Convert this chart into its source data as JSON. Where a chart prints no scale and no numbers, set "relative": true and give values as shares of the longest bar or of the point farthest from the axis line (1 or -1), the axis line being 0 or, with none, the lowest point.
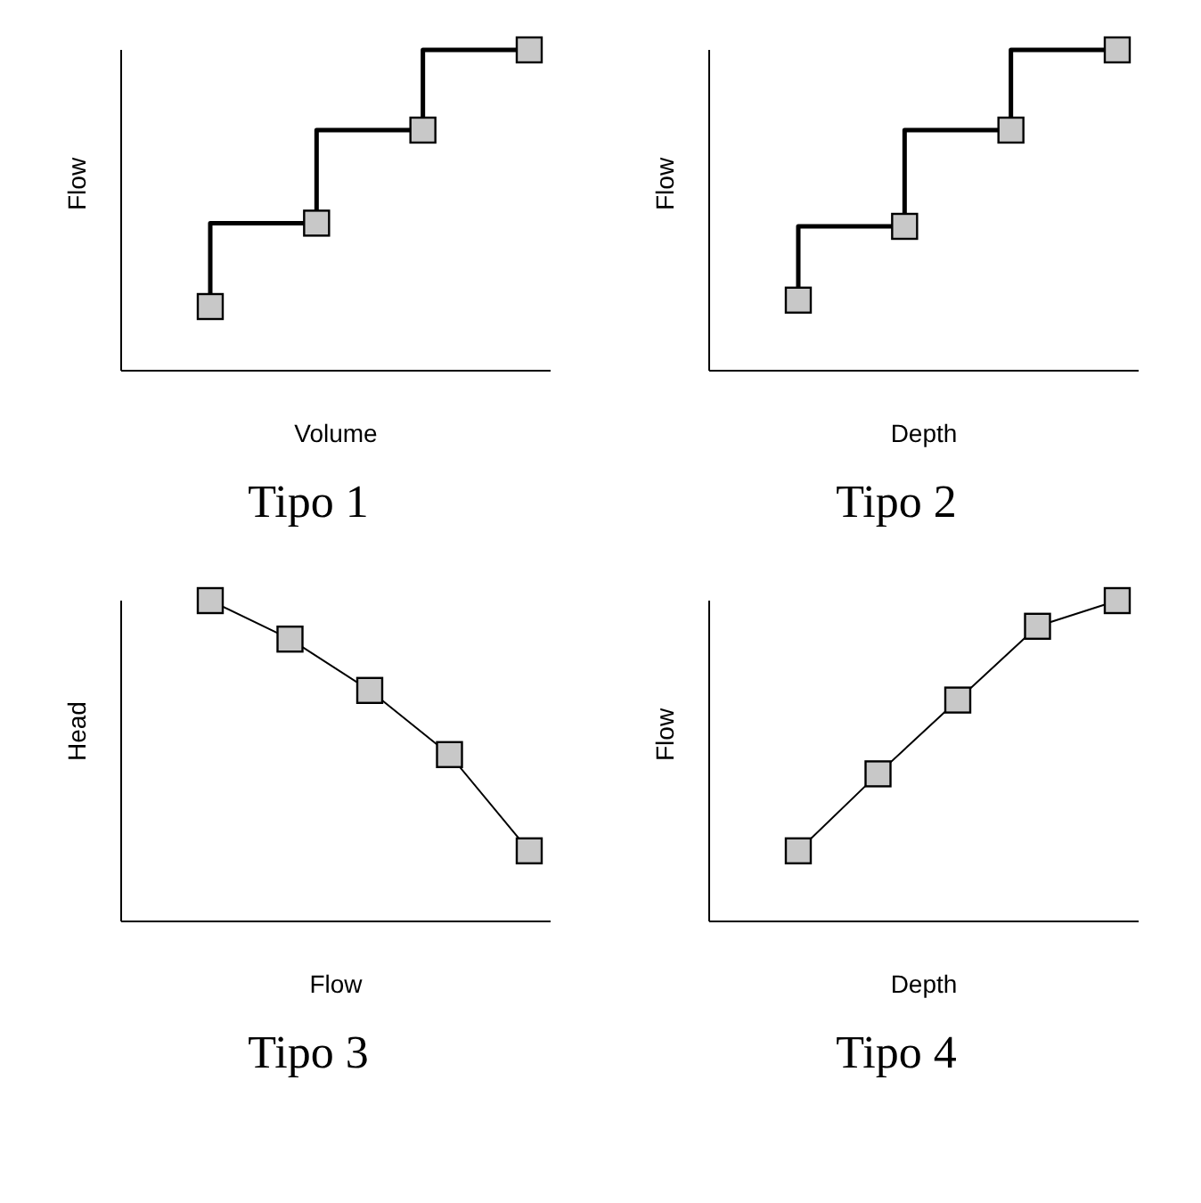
{
  "chart_data": [
    {
      "type": "step",
      "title": "Tipo 1",
      "xlabel": "Volume",
      "ylabel": "Flow",
      "categories": [
        null,
        null,
        null,
        null
      ],
      "values": [
        0.2,
        0.46,
        0.75,
        1
      ],
      "relative": true,
      "color": "#000000",
      "marker": "square",
      "grid": false
    },
    {
      "type": "step",
      "title": "Tipo 2",
      "xlabel": "Depth",
      "ylabel": "Flow",
      "categories": [
        null,
        null,
        null,
        null
      ],
      "values": [
        0.22,
        0.45,
        0.75,
        1
      ],
      "relative": true,
      "color": "#000000",
      "marker": "square",
      "grid": false
    },
    {
      "type": "line",
      "title": "Tipo 3",
      "xlabel": "Flow",
      "ylabel": "Head",
      "categories": [
        null,
        null,
        null,
        null,
        null
      ],
      "values": [
        1,
        0.88,
        0.72,
        0.52,
        0.22
      ],
      "relative": true,
      "color": "#000000",
      "marker": "square",
      "grid": false
    },
    {
      "type": "line",
      "title": "Tipo 4",
      "xlabel": "Depth",
      "ylabel": "Flow",
      "categories": [
        null,
        null,
        null,
        null,
        null
      ],
      "values": [
        0.22,
        0.46,
        0.69,
        0.92,
        1
      ],
      "relative": true,
      "color": "#000000",
      "marker": "square",
      "grid": false
    }
  ]
}
